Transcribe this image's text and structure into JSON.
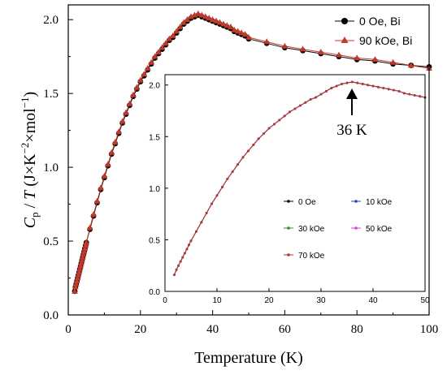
{
  "chart_data": [
    {
      "type": "line",
      "title": "",
      "xlabel": "Temperature (K)",
      "ylabel": {
        "parts": [
          {
            "text": "C",
            "style": "italic"
          },
          {
            "text": "p",
            "style": "sub"
          },
          {
            "text": " / ",
            "style": "normal"
          },
          {
            "text": "T",
            "style": "italic"
          },
          {
            "text": " (J×K",
            "style": "normal"
          },
          {
            "text": "−2",
            "style": "sup"
          },
          {
            "text": "×mol",
            "style": "normal"
          },
          {
            "text": "−1",
            "style": "sup"
          },
          {
            "text": ")",
            "style": "normal"
          }
        ]
      },
      "xlim": [
        0,
        100
      ],
      "ylim": [
        0,
        2.1
      ],
      "xticks": [
        "0",
        "20",
        "40",
        "60",
        "80",
        "100"
      ],
      "yticks": [
        "0.0",
        "0.5",
        "1.0",
        "1.5",
        "2.0"
      ],
      "legend_position": "top-right",
      "series": [
        {
          "name": "0 Oe, Bi",
          "color": "#000000",
          "marker": "circle",
          "x": [
            1.8,
            2.0,
            2.2,
            2.4,
            2.6,
            2.8,
            3.0,
            3.2,
            3.4,
            3.6,
            3.8,
            4.0,
            4.2,
            4.4,
            4.6,
            4.8,
            5.0,
            6.0,
            7.0,
            8.0,
            9.0,
            10.0,
            11.0,
            12.0,
            13.0,
            14.0,
            15.0,
            16.0,
            17.0,
            18.0,
            19.0,
            20.0,
            21.0,
            22.0,
            23.0,
            24.0,
            25.0,
            26.0,
            27.0,
            28.0,
            29.0,
            30.0,
            31.0,
            32.0,
            33.0,
            34.0,
            35.0,
            36.0,
            37.0,
            38.0,
            39.0,
            40.0,
            41.0,
            42.0,
            43.0,
            44.0,
            45.0,
            46.0,
            47.0,
            48.0,
            49.0,
            50.0,
            55.0,
            60.0,
            65.0,
            70.0,
            75.0,
            80.0,
            85.0,
            90.0,
            95.0,
            100.0
          ],
          "y": [
            0.16,
            0.19,
            0.21,
            0.23,
            0.25,
            0.27,
            0.29,
            0.31,
            0.33,
            0.35,
            0.37,
            0.39,
            0.41,
            0.43,
            0.45,
            0.47,
            0.49,
            0.58,
            0.67,
            0.76,
            0.85,
            0.93,
            1.01,
            1.09,
            1.16,
            1.23,
            1.3,
            1.36,
            1.42,
            1.48,
            1.53,
            1.58,
            1.62,
            1.66,
            1.7,
            1.74,
            1.77,
            1.8,
            1.83,
            1.86,
            1.88,
            1.91,
            1.94,
            1.97,
            1.99,
            2.01,
            2.02,
            2.03,
            2.02,
            2.01,
            2.0,
            1.99,
            1.98,
            1.97,
            1.96,
            1.95,
            1.94,
            1.92,
            1.91,
            1.9,
            1.89,
            1.87,
            1.84,
            1.81,
            1.79,
            1.77,
            1.75,
            1.73,
            1.72,
            1.7,
            1.69,
            1.68
          ]
        },
        {
          "name": "90 kOe, Bi",
          "color": "#c0392b",
          "marker": "triangle",
          "x": [
            1.8,
            2.0,
            2.2,
            2.4,
            2.6,
            2.8,
            3.0,
            3.2,
            3.4,
            3.6,
            3.8,
            4.0,
            4.2,
            4.4,
            4.6,
            4.8,
            5.0,
            6.0,
            7.0,
            8.0,
            9.0,
            10.0,
            11.0,
            12.0,
            13.0,
            14.0,
            15.0,
            16.0,
            17.0,
            18.0,
            19.0,
            20.0,
            21.0,
            22.0,
            23.0,
            24.0,
            25.0,
            26.0,
            27.0,
            28.0,
            29.0,
            30.0,
            31.0,
            32.0,
            33.0,
            34.0,
            35.0,
            36.0,
            37.0,
            38.0,
            39.0,
            40.0,
            41.0,
            42.0,
            43.0,
            44.0,
            45.0,
            46.0,
            47.0,
            48.0,
            49.0,
            50.0,
            55.0,
            60.0,
            65.0,
            70.0,
            75.0,
            80.0,
            85.0,
            90.0,
            95.0,
            100.0
          ],
          "y": [
            0.16,
            0.19,
            0.21,
            0.23,
            0.25,
            0.27,
            0.29,
            0.31,
            0.33,
            0.35,
            0.37,
            0.39,
            0.41,
            0.43,
            0.45,
            0.47,
            0.49,
            0.59,
            0.68,
            0.77,
            0.86,
            0.94,
            1.02,
            1.1,
            1.17,
            1.24,
            1.31,
            1.37,
            1.43,
            1.49,
            1.54,
            1.59,
            1.63,
            1.67,
            1.71,
            1.75,
            1.78,
            1.81,
            1.84,
            1.87,
            1.89,
            1.92,
            1.95,
            1.98,
            2.0,
            2.02,
            2.03,
            2.04,
            2.03,
            2.02,
            2.01,
            2.0,
            1.99,
            1.98,
            1.97,
            1.96,
            1.95,
            1.93,
            1.92,
            1.91,
            1.9,
            1.88,
            1.85,
            1.82,
            1.8,
            1.78,
            1.76,
            1.74,
            1.73,
            1.71,
            1.69,
            1.67
          ]
        }
      ]
    },
    {
      "type": "line",
      "title": "",
      "xlabel": "",
      "ylabel": "",
      "xlim": [
        0,
        50
      ],
      "ylim": [
        0,
        2.1
      ],
      "xticks": [
        "0",
        "10",
        "20",
        "30",
        "40",
        "50"
      ],
      "yticks": [
        "0.0",
        "0.5",
        "1.0",
        "1.5",
        "2.0"
      ],
      "legend_position": "bottom-right",
      "annotation": {
        "text": "36 K",
        "x": 36,
        "y": 2.03
      },
      "x": [
        1.8,
        2.2,
        2.6,
        3.0,
        3.4,
        3.8,
        4.2,
        4.6,
        5.0,
        6.0,
        7.0,
        8.0,
        9.0,
        10.0,
        11.0,
        12.0,
        13.0,
        14.0,
        15.0,
        16.0,
        17.0,
        18.0,
        19.0,
        20.0,
        21.0,
        22.0,
        23.0,
        24.0,
        25.0,
        26.0,
        27.0,
        28.0,
        29.0,
        30.0,
        31.0,
        32.0,
        33.0,
        34.0,
        35.0,
        36.0,
        37.0,
        38.0,
        39.0,
        40.0,
        41.0,
        42.0,
        43.0,
        44.0,
        45.0,
        46.0,
        47.0,
        48.0,
        49.0,
        50.0
      ],
      "series": [
        {
          "name": "0 Oe",
          "color": "#000000",
          "marker": "circle",
          "y": [
            0.16,
            0.21,
            0.25,
            0.29,
            0.33,
            0.37,
            0.41,
            0.45,
            0.49,
            0.58,
            0.67,
            0.76,
            0.85,
            0.93,
            1.01,
            1.09,
            1.16,
            1.23,
            1.3,
            1.36,
            1.42,
            1.48,
            1.53,
            1.58,
            1.62,
            1.66,
            1.7,
            1.74,
            1.77,
            1.8,
            1.83,
            1.86,
            1.88,
            1.91,
            1.94,
            1.97,
            1.99,
            2.01,
            2.02,
            2.03,
            2.02,
            2.01,
            2.0,
            1.99,
            1.98,
            1.97,
            1.96,
            1.95,
            1.94,
            1.92,
            1.91,
            1.9,
            1.89,
            1.88
          ]
        },
        {
          "name": "10 kOe",
          "color": "#2c3ec9",
          "marker": "circle",
          "y": [
            0.16,
            0.21,
            0.25,
            0.29,
            0.33,
            0.37,
            0.41,
            0.45,
            0.49,
            0.58,
            0.67,
            0.76,
            0.85,
            0.93,
            1.01,
            1.09,
            1.16,
            1.23,
            1.3,
            1.36,
            1.42,
            1.48,
            1.53,
            1.58,
            1.62,
            1.66,
            1.7,
            1.74,
            1.77,
            1.8,
            1.83,
            1.86,
            1.88,
            1.91,
            1.94,
            1.97,
            1.99,
            2.01,
            2.02,
            2.03,
            2.02,
            2.01,
            2.0,
            1.99,
            1.98,
            1.97,
            1.96,
            1.95,
            1.94,
            1.92,
            1.91,
            1.9,
            1.89,
            1.88
          ]
        },
        {
          "name": "30 kOe",
          "color": "#2e8b3e",
          "marker": "circle",
          "y": [
            0.16,
            0.21,
            0.25,
            0.29,
            0.33,
            0.37,
            0.41,
            0.45,
            0.49,
            0.58,
            0.67,
            0.76,
            0.85,
            0.93,
            1.01,
            1.09,
            1.16,
            1.23,
            1.3,
            1.36,
            1.42,
            1.48,
            1.53,
            1.58,
            1.62,
            1.66,
            1.7,
            1.74,
            1.77,
            1.8,
            1.83,
            1.86,
            1.88,
            1.91,
            1.94,
            1.97,
            1.99,
            2.01,
            2.02,
            2.03,
            2.02,
            2.01,
            2.0,
            1.99,
            1.98,
            1.97,
            1.96,
            1.95,
            1.94,
            1.92,
            1.91,
            1.9,
            1.89,
            1.88
          ]
        },
        {
          "name": "50 kOe",
          "color": "#d63fe0",
          "marker": "circle",
          "y": [
            0.16,
            0.21,
            0.25,
            0.29,
            0.33,
            0.37,
            0.41,
            0.45,
            0.49,
            0.58,
            0.67,
            0.76,
            0.85,
            0.93,
            1.01,
            1.09,
            1.16,
            1.23,
            1.3,
            1.36,
            1.42,
            1.48,
            1.53,
            1.58,
            1.62,
            1.66,
            1.7,
            1.74,
            1.77,
            1.8,
            1.83,
            1.86,
            1.88,
            1.91,
            1.94,
            1.97,
            1.99,
            2.01,
            2.02,
            2.03,
            2.02,
            2.01,
            2.0,
            1.99,
            1.98,
            1.97,
            1.96,
            1.95,
            1.94,
            1.92,
            1.91,
            1.9,
            1.89,
            1.88
          ]
        },
        {
          "name": "70 kOe",
          "color": "#b03a2e",
          "marker": "circle",
          "y": [
            0.16,
            0.21,
            0.25,
            0.29,
            0.33,
            0.37,
            0.41,
            0.45,
            0.49,
            0.58,
            0.67,
            0.76,
            0.85,
            0.93,
            1.01,
            1.09,
            1.16,
            1.23,
            1.3,
            1.36,
            1.42,
            1.48,
            1.53,
            1.58,
            1.62,
            1.66,
            1.7,
            1.74,
            1.77,
            1.8,
            1.83,
            1.86,
            1.88,
            1.91,
            1.94,
            1.97,
            1.99,
            2.01,
            2.02,
            2.03,
            2.02,
            2.01,
            2.0,
            1.99,
            1.98,
            1.97,
            1.96,
            1.95,
            1.94,
            1.92,
            1.91,
            1.9,
            1.89,
            1.88
          ]
        }
      ]
    }
  ]
}
